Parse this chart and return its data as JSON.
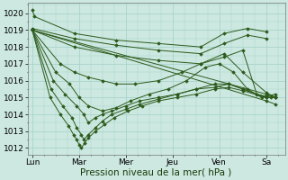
{
  "bg_color": "#cce8e0",
  "grid_color": "#a8d4cc",
  "line_color": "#2d5a1b",
  "xlabel": "Pression niveau de la mer( hPa )",
  "xlabel_fontsize": 7.5,
  "xtick_labels": [
    "Lun",
    "Mar",
    "Mer",
    "Jeu",
    "Ven",
    "Sa"
  ],
  "ytick_vals": [
    1012,
    1013,
    1014,
    1015,
    1016,
    1017,
    1018,
    1019,
    1020
  ],
  "ylim": [
    1011.6,
    1020.6
  ],
  "xlim": [
    -0.1,
    5.4
  ],
  "xtick_positions": [
    0,
    1,
    2,
    3,
    4,
    5
  ],
  "lines": [
    {
      "x": [
        0.0,
        0.05,
        0.9,
        1.8,
        2.7,
        3.6,
        4.1,
        4.6,
        5.0
      ],
      "y": [
        1020.2,
        1019.8,
        1018.8,
        1018.4,
        1018.2,
        1018.0,
        1018.8,
        1019.1,
        1018.9
      ]
    },
    {
      "x": [
        0.0,
        0.9,
        1.8,
        2.7,
        3.6,
        4.1,
        4.6,
        5.0
      ],
      "y": [
        1019.1,
        1018.5,
        1018.1,
        1017.8,
        1017.6,
        1018.2,
        1018.7,
        1018.5
      ]
    },
    {
      "x": [
        0.0,
        0.9,
        1.8,
        2.7,
        3.6,
        4.1,
        4.5,
        4.8,
        5.1
      ],
      "y": [
        1019.0,
        1018.0,
        1017.5,
        1017.2,
        1017.0,
        1017.4,
        1017.8,
        1015.2,
        1015.0
      ]
    },
    {
      "x": [
        0.0,
        0.6,
        0.9,
        1.2,
        1.5,
        1.8,
        2.2,
        2.7,
        3.2,
        3.6,
        4.1,
        4.5,
        5.0,
        5.2
      ],
      "y": [
        1019.0,
        1017.0,
        1016.5,
        1016.2,
        1016.0,
        1015.8,
        1015.8,
        1016.0,
        1016.5,
        1017.0,
        1017.6,
        1016.5,
        1015.3,
        1015.0
      ]
    },
    {
      "x": [
        0.0,
        0.5,
        0.8,
        1.0,
        1.2,
        1.5,
        1.8,
        2.1,
        2.5,
        2.9,
        3.3,
        3.7,
        4.0,
        4.3,
        4.6,
        4.9,
        5.2
      ],
      "y": [
        1019.0,
        1016.5,
        1015.8,
        1015.0,
        1014.5,
        1014.2,
        1014.4,
        1014.8,
        1015.2,
        1015.5,
        1016.0,
        1016.8,
        1017.0,
        1016.5,
        1015.5,
        1015.0,
        1015.2
      ]
    },
    {
      "x": [
        0.0,
        0.45,
        0.7,
        0.95,
        1.1,
        1.2,
        1.35,
        1.5,
        1.7,
        2.0,
        2.3,
        2.7,
        3.1,
        3.5,
        3.9,
        4.2,
        4.5,
        5.0,
        5.2
      ],
      "y": [
        1019.0,
        1016.0,
        1015.2,
        1014.5,
        1014.0,
        1013.5,
        1013.8,
        1014.0,
        1014.2,
        1014.5,
        1014.8,
        1015.0,
        1015.2,
        1015.5,
        1015.8,
        1015.8,
        1015.5,
        1015.0,
        1015.0
      ]
    },
    {
      "x": [
        0.0,
        0.4,
        0.65,
        0.85,
        0.95,
        1.05,
        1.1,
        1.2,
        1.35,
        1.5,
        1.7,
        2.0,
        2.3,
        2.7,
        3.1,
        3.5,
        3.9,
        4.2,
        4.5,
        5.0,
        5.2
      ],
      "y": [
        1019.0,
        1015.5,
        1014.5,
        1013.8,
        1013.2,
        1012.8,
        1012.5,
        1012.8,
        1013.2,
        1013.6,
        1014.0,
        1014.3,
        1014.6,
        1014.9,
        1015.2,
        1015.5,
        1015.6,
        1015.8,
        1015.5,
        1015.0,
        1015.0
      ]
    },
    {
      "x": [
        0.0,
        0.38,
        0.6,
        0.78,
        0.88,
        0.95,
        1.0,
        1.05,
        1.12,
        1.2,
        1.35,
        1.55,
        1.75,
        2.05,
        2.35,
        2.7,
        3.1,
        3.5,
        3.9,
        4.2,
        4.5,
        5.0,
        5.2
      ],
      "y": [
        1019.0,
        1015.0,
        1014.0,
        1013.3,
        1012.8,
        1012.5,
        1012.2,
        1012.0,
        1012.3,
        1012.6,
        1013.0,
        1013.4,
        1013.8,
        1014.2,
        1014.5,
        1014.8,
        1015.0,
        1015.2,
        1015.5,
        1015.6,
        1015.4,
        1015.0,
        1015.0
      ]
    },
    {
      "x": [
        0.0,
        5.0,
        5.2
      ],
      "y": [
        1019.0,
        1015.2,
        1015.0
      ]
    },
    {
      "x": [
        0.0,
        5.0,
        5.2
      ],
      "y": [
        1019.0,
        1014.8,
        1014.6
      ]
    }
  ],
  "figsize": [
    3.2,
    2.0
  ],
  "dpi": 100
}
